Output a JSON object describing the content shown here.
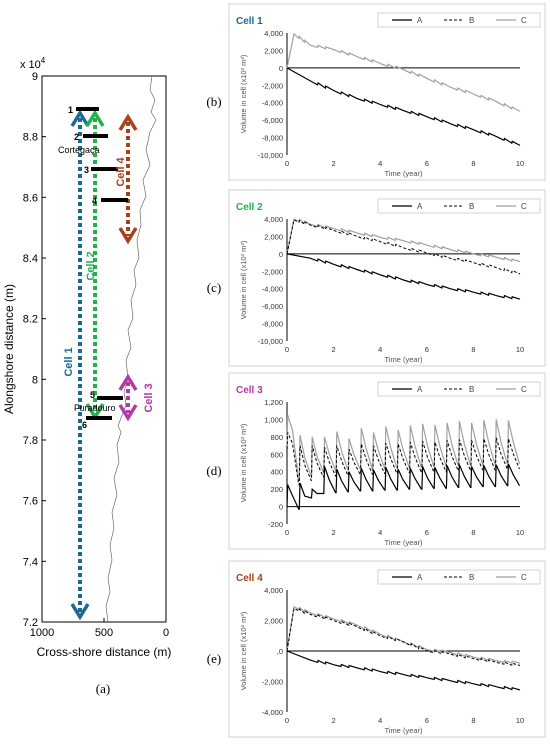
{
  "map": {
    "x_axis_label": "Cross-shore distance (m)",
    "y_axis_label": "Alongshore distance (m)",
    "y_multiplier": "x 10",
    "y_multiplier_exp": "4",
    "x_ticks": [
      "1000",
      "500",
      "0"
    ],
    "y_ticks": [
      "9",
      "8.8",
      "8.6",
      "8.4",
      "8.2",
      "8",
      "7.8",
      "7.6",
      "7.4",
      "7.2"
    ],
    "x_range": [
      1000,
      0
    ],
    "y_range": [
      7.2,
      9
    ],
    "place_labels": [
      "Cortegaça",
      "Furadouro"
    ],
    "profile_labels": [
      "1",
      "2",
      "3",
      "4",
      "5",
      "6"
    ],
    "cell_labels": [
      "Cell 1",
      "Cell 2",
      "Cell 3",
      "Cell 4"
    ],
    "cell_colors": [
      "#1b6a93",
      "#22b24c",
      "#b03aa6",
      "#a8401c"
    ],
    "panel_label": "(a)"
  },
  "panels": [
    {
      "label": "(b)",
      "title": "Cell 1",
      "title_color": "#1b6a93"
    },
    {
      "label": "(c)",
      "title": "Cell 2",
      "title_color": "#22b24c"
    },
    {
      "label": "(d)",
      "title": "Cell 3",
      "title_color": "#b03aa6"
    },
    {
      "label": "(e)",
      "title": "Cell 4",
      "title_color": "#a8401c"
    }
  ],
  "legend": [
    "A",
    "B",
    "C"
  ],
  "chart_data": [
    {
      "type": "line",
      "title": "Cell 1",
      "xlabel": "Time (year)",
      "ylabel": "Volume in cell (x10³ m³)",
      "xlim": [
        0,
        10
      ],
      "ylim": [
        -10000,
        4000
      ],
      "x_ticks": [
        "0",
        "2",
        "4",
        "6",
        "8",
        "10"
      ],
      "y_ticks": [
        "4,000",
        "2,000",
        "0",
        "-2,000",
        "-4,000",
        "-6,000",
        "-8,000",
        "-10,000"
      ],
      "series": [
        {
          "name": "A",
          "x": [
            0,
            1,
            2,
            3,
            4,
            5,
            6,
            7,
            8,
            9,
            10
          ],
          "values": [
            0,
            -1500,
            -2600,
            -3500,
            -4200,
            -4900,
            -5600,
            -6400,
            -7100,
            -7900,
            -8900
          ]
        },
        {
          "name": "C",
          "x": [
            0,
            0.3,
            1,
            2,
            3,
            4,
            5,
            6,
            7,
            8,
            9,
            10
          ],
          "values": [
            0,
            3900,
            2600,
            2100,
            1300,
            500,
            -200,
            -1200,
            -2200,
            -3000,
            -3900,
            -5000
          ]
        }
      ]
    },
    {
      "type": "line",
      "title": "Cell 2",
      "xlabel": "Time (year)",
      "ylabel": "Volume in cell (x10³ m³)",
      "xlim": [
        0,
        10
      ],
      "ylim": [
        -10000,
        4000
      ],
      "x_ticks": [
        "0",
        "2",
        "4",
        "6",
        "8",
        "10"
      ],
      "y_ticks": [
        "4,000",
        "2,000",
        "0",
        "-2,000",
        "-4,000",
        "-6,000",
        "-8,000",
        "-10,000"
      ],
      "series": [
        {
          "name": "A",
          "x": [
            0,
            1,
            2,
            3,
            4,
            5,
            6,
            7,
            8,
            9,
            10
          ],
          "values": [
            0,
            -500,
            -1200,
            -1800,
            -2400,
            -3000,
            -3500,
            -4000,
            -4400,
            -4800,
            -5200
          ]
        },
        {
          "name": "B",
          "x": [
            0,
            0.3,
            1,
            2,
            3,
            4,
            5,
            6,
            7,
            8,
            9,
            10
          ],
          "values": [
            0,
            3900,
            3300,
            2700,
            2000,
            1400,
            700,
            100,
            -500,
            -1000,
            -1600,
            -2300
          ]
        },
        {
          "name": "C",
          "x": [
            0,
            0.3,
            1,
            2,
            3,
            4,
            5,
            6,
            7,
            8,
            9,
            10
          ],
          "values": [
            0,
            4000,
            3400,
            2900,
            2400,
            1900,
            1500,
            1000,
            500,
            0,
            -400,
            -900
          ]
        }
      ]
    },
    {
      "type": "line",
      "title": "Cell 3",
      "xlabel": "Time (year)",
      "ylabel": "Volume in cell (x10³ m³)",
      "xlim": [
        0,
        10
      ],
      "ylim": [
        -200,
        1200
      ],
      "x_ticks": [
        "0",
        "2",
        "4",
        "6",
        "8",
        "10"
      ],
      "y_ticks": [
        "1,200",
        "1,000",
        "800",
        "600",
        "400",
        "200",
        "0",
        "-200"
      ],
      "series": [
        {
          "name": "A",
          "peaks": [
            250,
            270,
            200,
            460,
            430,
            400,
            440,
            420,
            450,
            430,
            440,
            460,
            450,
            470,
            480,
            460,
            470,
            480,
            490
          ],
          "troughs": [
            0,
            -30,
            100,
            150,
            160,
            170,
            180,
            180,
            190,
            190,
            200,
            200,
            210,
            210,
            220,
            220,
            230,
            230,
            240
          ]
        },
        {
          "name": "B",
          "peaks": [
            850,
            700,
            700,
            680,
            700,
            660,
            720,
            700,
            730,
            720,
            740,
            750,
            740,
            760,
            770,
            760,
            780,
            790,
            780
          ],
          "troughs": [
            600,
            250,
            300,
            340,
            350,
            360,
            370,
            370,
            380,
            380,
            390,
            390,
            400,
            400,
            410,
            410,
            420,
            420,
            430
          ]
        },
        {
          "name": "C",
          "peaks": [
            1050,
            820,
            800,
            800,
            860,
            780,
            900,
            850,
            920,
            880,
            930,
            950,
            940,
            960,
            980,
            960,
            990,
            1000,
            990
          ],
          "troughs": [
            700,
            300,
            350,
            400,
            410,
            420,
            430,
            430,
            440,
            440,
            450,
            450,
            460,
            460,
            470,
            470,
            480,
            480,
            490
          ]
        }
      ]
    },
    {
      "type": "line",
      "title": "Cell 4",
      "xlabel": "Time (year)",
      "ylabel": "Volume in cell (x10³ m³)",
      "xlim": [
        0,
        10
      ],
      "ylim": [
        -4000,
        4000
      ],
      "x_ticks": [
        "0",
        "2",
        "4",
        "6",
        "8",
        "10"
      ],
      "y_ticks": [
        "4,000",
        "2,000",
        ",0",
        "-2,000",
        "-4,000"
      ],
      "series": [
        {
          "name": "A",
          "x": [
            0,
            1,
            2,
            3,
            4,
            5,
            6,
            7,
            8,
            9,
            10
          ],
          "values": [
            0,
            -600,
            -900,
            -1100,
            -1350,
            -1550,
            -1750,
            -1950,
            -2150,
            -2350,
            -2550
          ]
        },
        {
          "name": "B",
          "x": [
            0,
            0.3,
            1,
            2,
            3,
            4,
            5,
            6,
            7,
            8,
            9,
            10
          ],
          "values": [
            0,
            2800,
            2400,
            2000,
            1600,
            1000,
            600,
            0,
            -200,
            -500,
            -750,
            -950
          ]
        },
        {
          "name": "C",
          "x": [
            0,
            0.3,
            1,
            2,
            3,
            4,
            5,
            6,
            7,
            8,
            9,
            10
          ],
          "values": [
            0,
            2900,
            2500,
            2100,
            1700,
            1100,
            600,
            100,
            -100,
            -400,
            -650,
            -800
          ]
        }
      ]
    }
  ]
}
